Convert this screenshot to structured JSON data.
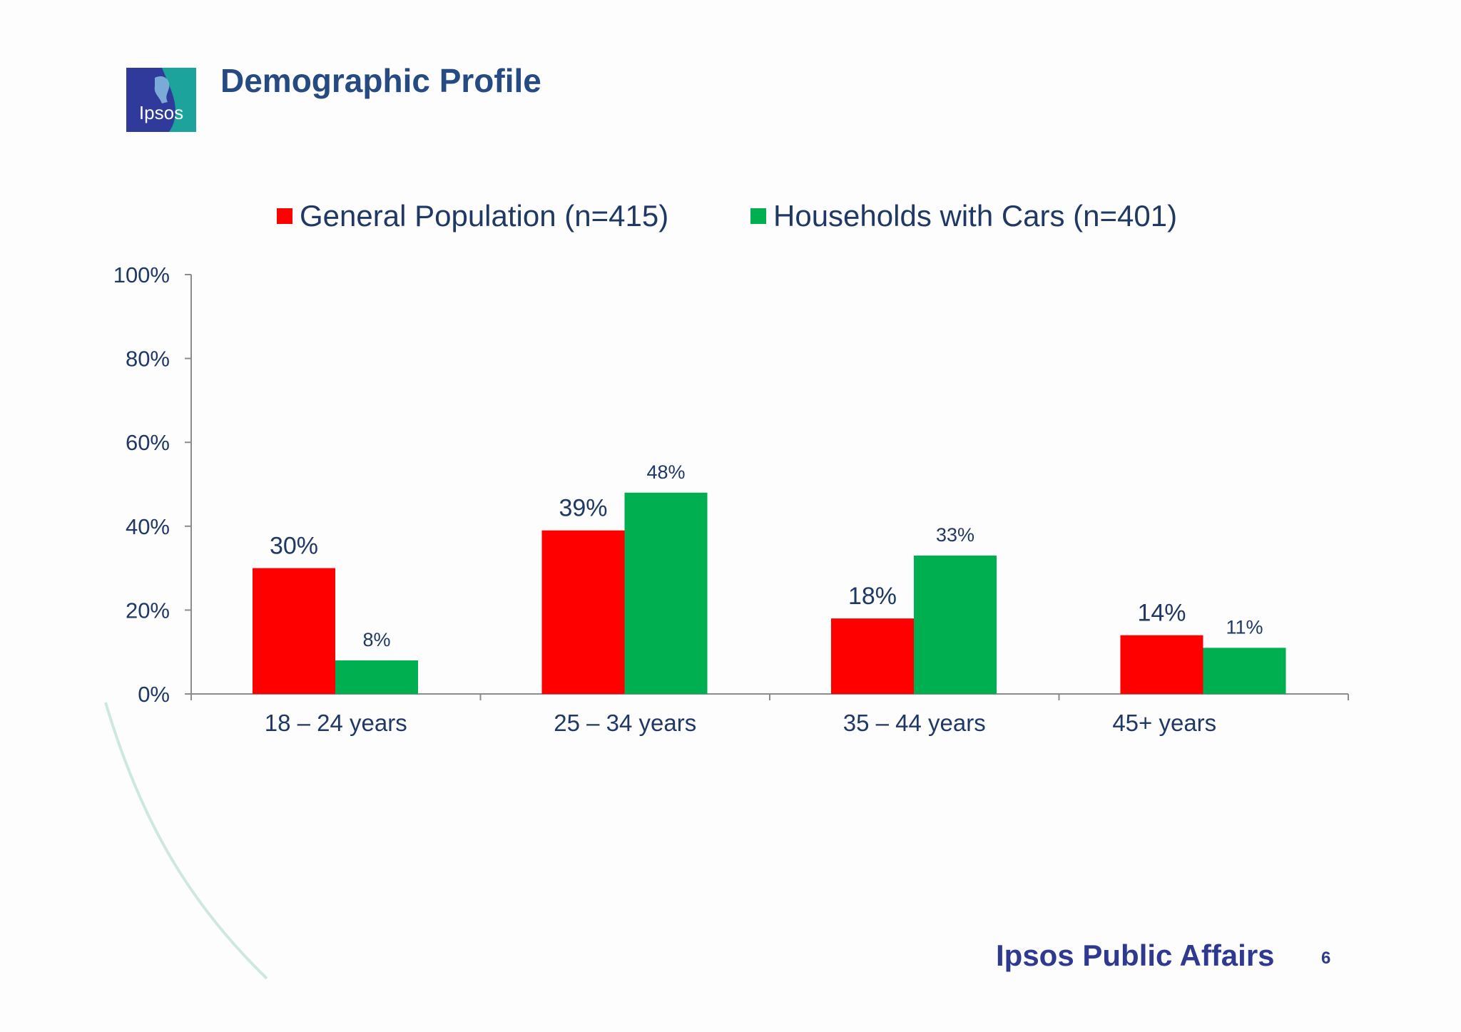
{
  "slide": {
    "title": "Demographic Profile",
    "logo_text": "Ipsos",
    "footer_brand": "Ipsos Public Affairs",
    "page_number": "6"
  },
  "colors": {
    "title": "#264b82",
    "text": "#1f3864",
    "series_general": "#ff0000",
    "series_cars": "#00b050",
    "axis": "#8c8c8c",
    "footer": "#2f3a8f",
    "logo_blue": "#2f3a9b",
    "logo_teal": "#1ba39c",
    "deco_arc": "#cfe8df"
  },
  "chart_data": {
    "type": "bar",
    "title": "",
    "xlabel": "",
    "ylabel": "",
    "categories": [
      "18 – 24 years",
      "25 – 34 years",
      "35 – 44 years",
      "45+ years"
    ],
    "series": [
      {
        "name": "General Population (n=415)",
        "values": [
          30,
          39,
          18,
          14
        ],
        "labels": [
          "30%",
          "39%",
          "18%",
          "14%"
        ],
        "color": "#ff0000"
      },
      {
        "name": "Households with Cars (n=401)",
        "values": [
          8,
          48,
          33,
          11
        ],
        "labels": [
          "8%",
          "48%",
          "33%",
          "11%"
        ],
        "color": "#00b050"
      }
    ],
    "ylim": [
      0,
      100
    ],
    "yticks": [
      0,
      20,
      40,
      60,
      80,
      100
    ],
    "ytick_labels": [
      "0%",
      "20%",
      "40%",
      "60%",
      "80%",
      "100%"
    ],
    "grid": false,
    "legend_position": "top"
  }
}
